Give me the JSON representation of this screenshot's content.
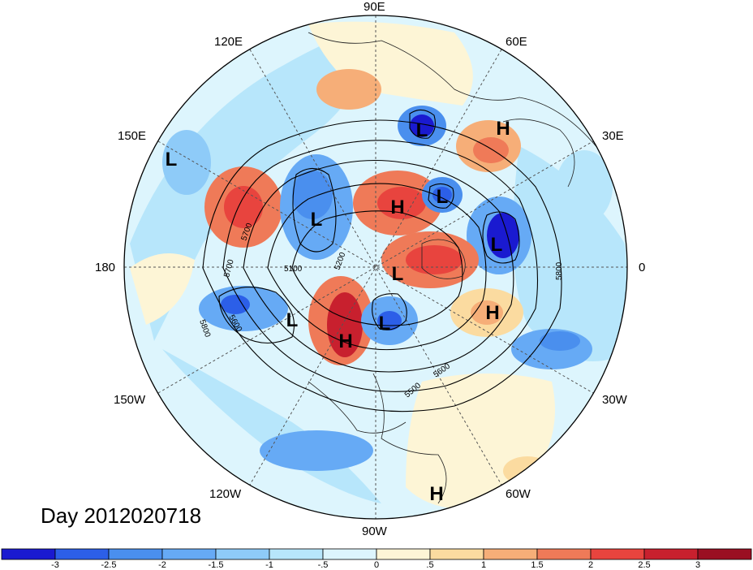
{
  "title": "Day 2012020718",
  "longitude_labels": {
    "top": "90E",
    "bottom": "90W",
    "left": "180",
    "right": "0",
    "upper_left_1": "120E",
    "upper_left_2": "150E",
    "upper_right_1": "60E",
    "upper_right_2": "30E",
    "lower_left_1": "150W",
    "lower_left_2": "120W",
    "lower_right_1": "30W",
    "lower_right_2": "60W"
  },
  "pressure_centers": [
    {
      "type": "L",
      "label": "L"
    },
    {
      "type": "L",
      "label": "L"
    },
    {
      "type": "L",
      "label": "L"
    },
    {
      "type": "L",
      "label": "L"
    },
    {
      "type": "L",
      "label": "L"
    },
    {
      "type": "L",
      "label": "L"
    },
    {
      "type": "L",
      "label": "L"
    },
    {
      "type": "L",
      "label": "L"
    },
    {
      "type": "H",
      "label": "H"
    },
    {
      "type": "H",
      "label": "H"
    },
    {
      "type": "H",
      "label": "H"
    },
    {
      "type": "H",
      "label": "H"
    },
    {
      "type": "H",
      "label": "H"
    }
  ],
  "contour_labels": [
    "5700",
    "5700",
    "5100",
    "5200",
    "5800",
    "5600",
    "5800",
    "5600",
    "5800",
    "5500"
  ],
  "colorbar": {
    "tick_labels": [
      "-3",
      "-2.5",
      "-2",
      "-1.5",
      "-1",
      "-.5",
      "0",
      ".5",
      "1",
      "1.5",
      "2",
      "2.5",
      "3"
    ],
    "colors": [
      "#1a1ad0",
      "#2c5fe8",
      "#4a8fee",
      "#66aaf5",
      "#8ecbf8",
      "#b7e6fb",
      "#ddf5fd",
      "#fdf5d6",
      "#fbdba0",
      "#f6ae78",
      "#ef7a58",
      "#e8443e",
      "#c8202e",
      "#9a0f22"
    ]
  },
  "colors": {
    "neg_strong": "#2c5fe8",
    "neg_mid": "#66aaf5",
    "neg_weak": "#b7e6fb",
    "pos_weak": "#fbdba0",
    "pos_mid": "#f6ae78",
    "pos_strong": "#e8443e"
  }
}
